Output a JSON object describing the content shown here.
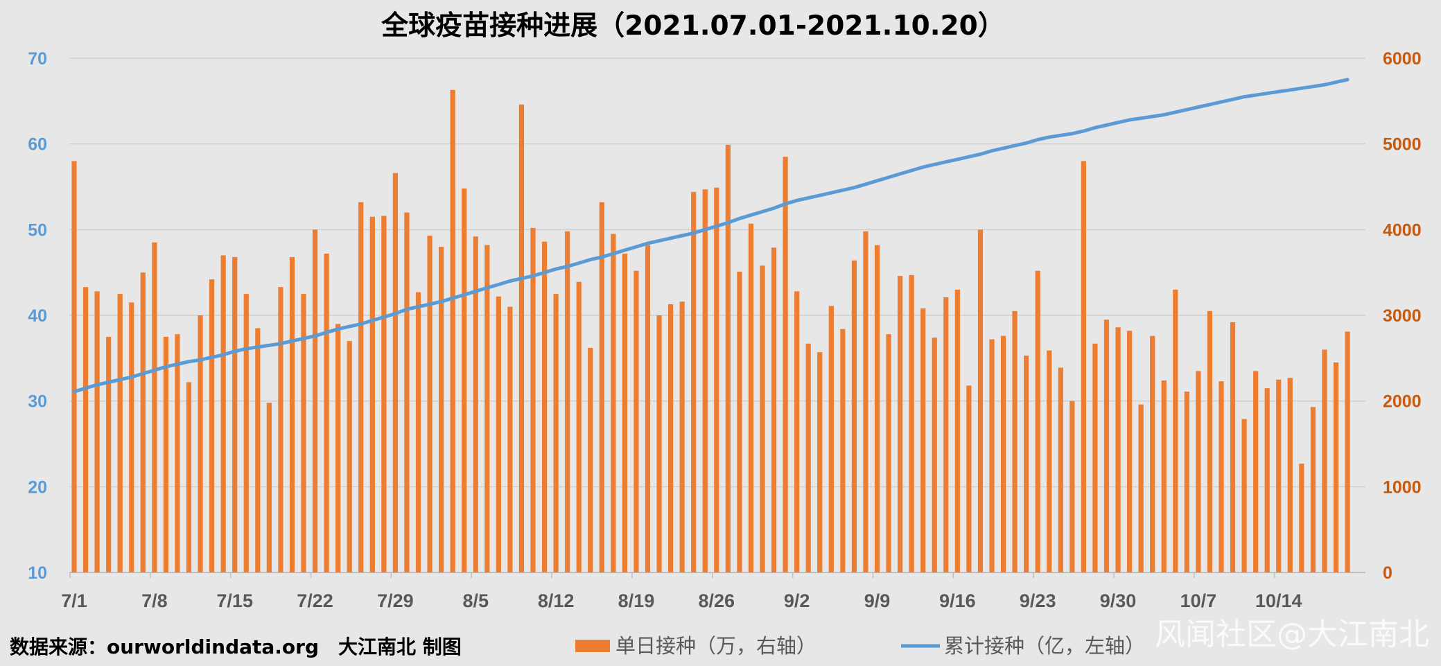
{
  "chart_data": {
    "type": "bar",
    "title": "全球疫苗接种进展（2021.07.01-2021.10.20）",
    "source_note": "数据来源：ourworldindata.org　大江南北 制图",
    "watermark": "风闻社区@大江南北",
    "left_axis": {
      "ylim": [
        10,
        70
      ],
      "ticks": [
        10,
        20,
        30,
        40,
        50,
        60,
        70
      ]
    },
    "right_axis": {
      "ylim": [
        0,
        6000
      ],
      "ticks": [
        0,
        1000,
        2000,
        3000,
        4000,
        5000,
        6000
      ]
    },
    "x_tick_labels": [
      "7/1",
      "7/8",
      "7/15",
      "7/22",
      "7/29",
      "8/5",
      "8/12",
      "8/19",
      "8/26",
      "9/2",
      "9/9",
      "9/16",
      "9/23",
      "9/30",
      "10/7",
      "10/14"
    ],
    "x_tick_step_days": 7,
    "grid": true,
    "legend_position": "bottom",
    "series": [
      {
        "name": "单日接种（万，右轴）",
        "type": "bar",
        "axis": "right",
        "color": "#ed7d31",
        "values": [
          4800,
          3330,
          3280,
          2750,
          3250,
          3150,
          3500,
          3850,
          2750,
          2780,
          2220,
          3000,
          3420,
          3700,
          3680,
          3250,
          2850,
          1980,
          3330,
          3680,
          3250,
          4000,
          3720,
          2900,
          2700,
          4320,
          4150,
          4160,
          4660,
          4200,
          3270,
          3930,
          3800,
          5630,
          4480,
          3920,
          3820,
          3220,
          3100,
          5460,
          4020,
          3860,
          3250,
          3980,
          3390,
          2620,
          4320,
          3950,
          3720,
          3520,
          3820,
          3000,
          3130,
          3160,
          4440,
          4470,
          4490,
          4990,
          3510,
          4070,
          3580,
          3790,
          4850,
          3280,
          2670,
          2570,
          3110,
          2840,
          3640,
          3980,
          3820,
          2780,
          3460,
          3470,
          3080,
          2740,
          3210,
          3300,
          2180,
          4000,
          2720,
          2760,
          3050,
          2530,
          3520,
          2590,
          2390,
          2000,
          4800,
          2670,
          2950,
          2860,
          2820,
          1960,
          2760,
          2240,
          3300,
          2110,
          2350,
          3050,
          2230,
          2920,
          1790,
          2350,
          2150,
          2250,
          2270,
          1270,
          1930,
          2600,
          2450,
          2810
        ]
      },
      {
        "name": "累计接种（亿，左轴）",
        "type": "line",
        "axis": "left",
        "color": "#5b9bd5",
        "values": [
          31.1,
          31.5,
          31.9,
          32.2,
          32.5,
          32.8,
          33.2,
          33.6,
          34.0,
          34.3,
          34.6,
          34.8,
          35.1,
          35.4,
          35.8,
          36.1,
          36.3,
          36.5,
          36.7,
          37.0,
          37.3,
          37.6,
          38.0,
          38.4,
          38.7,
          39.0,
          39.4,
          39.8,
          40.2,
          40.7,
          41.0,
          41.3,
          41.6,
          42.0,
          42.4,
          42.8,
          43.2,
          43.6,
          44.0,
          44.3,
          44.6,
          45.0,
          45.4,
          45.7,
          46.1,
          46.5,
          46.8,
          47.2,
          47.6,
          48.0,
          48.4,
          48.7,
          49.0,
          49.3,
          49.6,
          50.0,
          50.4,
          50.8,
          51.3,
          51.7,
          52.1,
          52.5,
          53.0,
          53.4,
          53.7,
          54.0,
          54.3,
          54.6,
          54.9,
          55.3,
          55.7,
          56.1,
          56.5,
          56.9,
          57.3,
          57.6,
          57.9,
          58.2,
          58.5,
          58.8,
          59.2,
          59.5,
          59.8,
          60.1,
          60.5,
          60.8,
          61.0,
          61.2,
          61.5,
          61.9,
          62.2,
          62.5,
          62.8,
          63.0,
          63.2,
          63.4,
          63.7,
          64.0,
          64.3,
          64.6,
          64.9,
          65.2,
          65.5,
          65.7,
          65.9,
          66.1,
          66.3,
          66.5,
          66.7,
          66.9,
          67.2,
          67.5
        ]
      }
    ]
  }
}
